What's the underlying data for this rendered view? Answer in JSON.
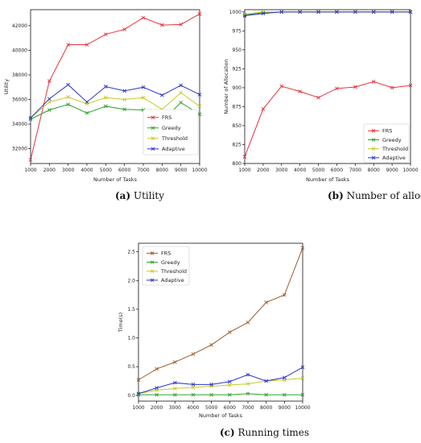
{
  "chart_data": [
    {
      "id": "a",
      "type": "line",
      "caption_label": "(a)",
      "caption_text": " Utility",
      "xlabel": "Number of Tasks",
      "ylabel": "Utility",
      "x": [
        1000,
        2000,
        3000,
        4000,
        5000,
        6000,
        7000,
        8000,
        9000,
        10000
      ],
      "xlim": [
        1000,
        10000
      ],
      "ylim": [
        30800,
        43300
      ],
      "yticks": [
        32000,
        34000,
        36000,
        38000,
        40000,
        42000
      ],
      "legend": "bottom-right",
      "grid": false,
      "series": [
        {
          "name": "FRS",
          "color": "#e8313b",
          "values": [
            31100,
            37500,
            40450,
            40450,
            41300,
            41700,
            42650,
            42050,
            42100,
            42950
          ]
        },
        {
          "name": "Greedy",
          "color": "#2ca02c",
          "values": [
            34400,
            35150,
            35600,
            34900,
            35450,
            35200,
            35150,
            34250,
            35750,
            34800
          ]
        },
        {
          "name": "Threshold",
          "color": "#c8c82a",
          "values": [
            34500,
            35800,
            36200,
            35650,
            36150,
            36000,
            36150,
            35200,
            36550,
            35450
          ]
        },
        {
          "name": "Adaptive",
          "color": "#2a35c8",
          "values": [
            34500,
            36050,
            37200,
            35800,
            37050,
            36700,
            37000,
            36350,
            37150,
            36400
          ]
        }
      ]
    },
    {
      "id": "b",
      "type": "line",
      "caption_label": "(b)",
      "caption_text": " Number of allocations",
      "xlabel": "Number of Tasks",
      "ylabel": "Number of Allocation",
      "x": [
        1000,
        2000,
        3000,
        4000,
        5000,
        6000,
        7000,
        8000,
        9000,
        10000
      ],
      "xlim": [
        1000,
        10000
      ],
      "ylim": [
        800,
        1003
      ],
      "yticks": [
        800,
        825,
        850,
        875,
        900,
        925,
        950,
        975,
        1000
      ],
      "legend": "bottom-right",
      "grid": false,
      "series": [
        {
          "name": "FRS",
          "color": "#e8313b",
          "values": [
            809,
            872,
            902,
            895,
            887,
            899,
            901,
            908,
            900,
            903
          ]
        },
        {
          "name": "Greedy",
          "color": "#2ca02c",
          "values": [
            996,
            999,
            1000,
            1000,
            1000,
            1000,
            1000,
            1000,
            1000,
            1000
          ]
        },
        {
          "name": "Threshold",
          "color": "#c8c82a",
          "values": [
            997,
            1000,
            1000,
            1000,
            1000,
            1000,
            1000,
            1000,
            1000,
            1000
          ]
        },
        {
          "name": "Adaptive",
          "color": "#2a35c8",
          "values": [
            995,
            998,
            1000,
            1000,
            1000,
            1000,
            1000,
            1000,
            1000,
            1000
          ]
        }
      ]
    },
    {
      "id": "c",
      "type": "line",
      "caption_label": "(c)",
      "caption_text": " Running times",
      "xlabel": "Number of Tasks",
      "ylabel": "Time(s)",
      "x": [
        1000,
        2000,
        3000,
        4000,
        5000,
        6000,
        7000,
        8000,
        9000,
        10000
      ],
      "xlim": [
        1000,
        10000
      ],
      "ylim": [
        -0.1,
        2.65
      ],
      "yticks": [
        0.0,
        0.5,
        1.0,
        1.5,
        2.0,
        2.5
      ],
      "ytick_labels": [
        "0.0",
        "0.5",
        "1.0",
        "1.5",
        "2.0",
        "2.5"
      ],
      "legend": "top-left",
      "grid": false,
      "series": [
        {
          "name": "FRS",
          "color": "#9c5a2a",
          "values": [
            0.27,
            0.46,
            0.58,
            0.72,
            0.88,
            1.1,
            1.27,
            1.62,
            1.75,
            2.57
          ]
        },
        {
          "name": "Greedy",
          "color": "#2ca02c",
          "values": [
            0.01,
            0.01,
            0.01,
            0.01,
            0.01,
            0.01,
            0.03,
            0.01,
            0.01,
            0.01
          ]
        },
        {
          "name": "Threshold",
          "color": "#c8c82a",
          "values": [
            0.03,
            0.09,
            0.12,
            0.14,
            0.16,
            0.18,
            0.2,
            0.25,
            0.27,
            0.3
          ]
        },
        {
          "name": "Adaptive",
          "color": "#2a35c8",
          "values": [
            0.03,
            0.13,
            0.22,
            0.19,
            0.19,
            0.24,
            0.36,
            0.25,
            0.31,
            0.49
          ]
        }
      ]
    }
  ]
}
